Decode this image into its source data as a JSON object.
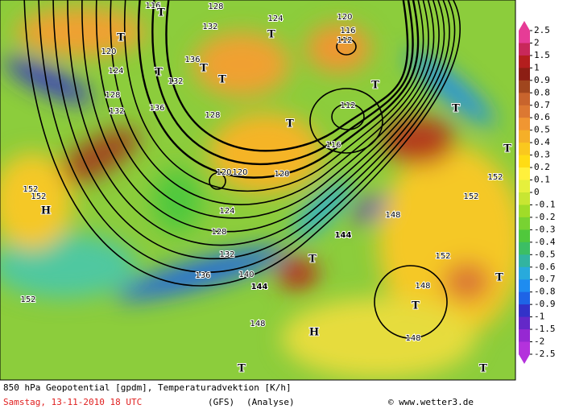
{
  "map": {
    "contour_labels": [
      "116",
      "128",
      "124",
      "120",
      "116",
      "112",
      "132",
      "120",
      "124",
      "136",
      "132",
      "128",
      "132",
      "136",
      "128",
      "112",
      "116",
      "120",
      "120",
      "120",
      "124",
      "128",
      "132",
      "136",
      "140",
      "144",
      "144",
      "148",
      "152",
      "152",
      "152",
      "152",
      "152",
      "148",
      "148",
      "148",
      "152"
    ],
    "symbols": [
      "T",
      "T",
      "T",
      "T",
      "T",
      "T",
      "T",
      "T",
      "T",
      "T",
      "T",
      "T",
      "T",
      "T",
      "T",
      "H",
      "H"
    ]
  },
  "colorbar": {
    "labels": [
      "2.5",
      "2",
      "1.5",
      "1",
      "0.9",
      "0.8",
      "0.7",
      "0.6",
      "0.5",
      "0.4",
      "0.3",
      "0.2",
      "0.1",
      "0",
      "-0.1",
      "-0.2",
      "-0.3",
      "-0.4",
      "-0.5",
      "-0.6",
      "-0.7",
      "-0.8",
      "-0.9",
      "-1",
      "-1.5",
      "-2",
      "-2.5"
    ],
    "colors": [
      "#e63c96",
      "#c8285a",
      "#b41e1e",
      "#8c1e14",
      "#a0461e",
      "#c8642d",
      "#dc7832",
      "#f09632",
      "#f5af28",
      "#fac81e",
      "#ffdc14",
      "#fff03c",
      "#e6f03c",
      "#c8e632",
      "#a0dc28",
      "#78d232",
      "#50c83c",
      "#3cbe64",
      "#32b4a0",
      "#28aadc",
      "#1e8cf0",
      "#1e64e6",
      "#3232c8",
      "#6428c8",
      "#9628d2",
      "#b432dc"
    ]
  },
  "footer": {
    "title": "850 hPa Geopotential [gpdm], Temperaturadvektion [K/h]",
    "date": "Samstag, 13-11-2010  18 UTC",
    "model": "(GFS)",
    "run": "(Analyse)",
    "credit": "© www.wetter3.de"
  }
}
